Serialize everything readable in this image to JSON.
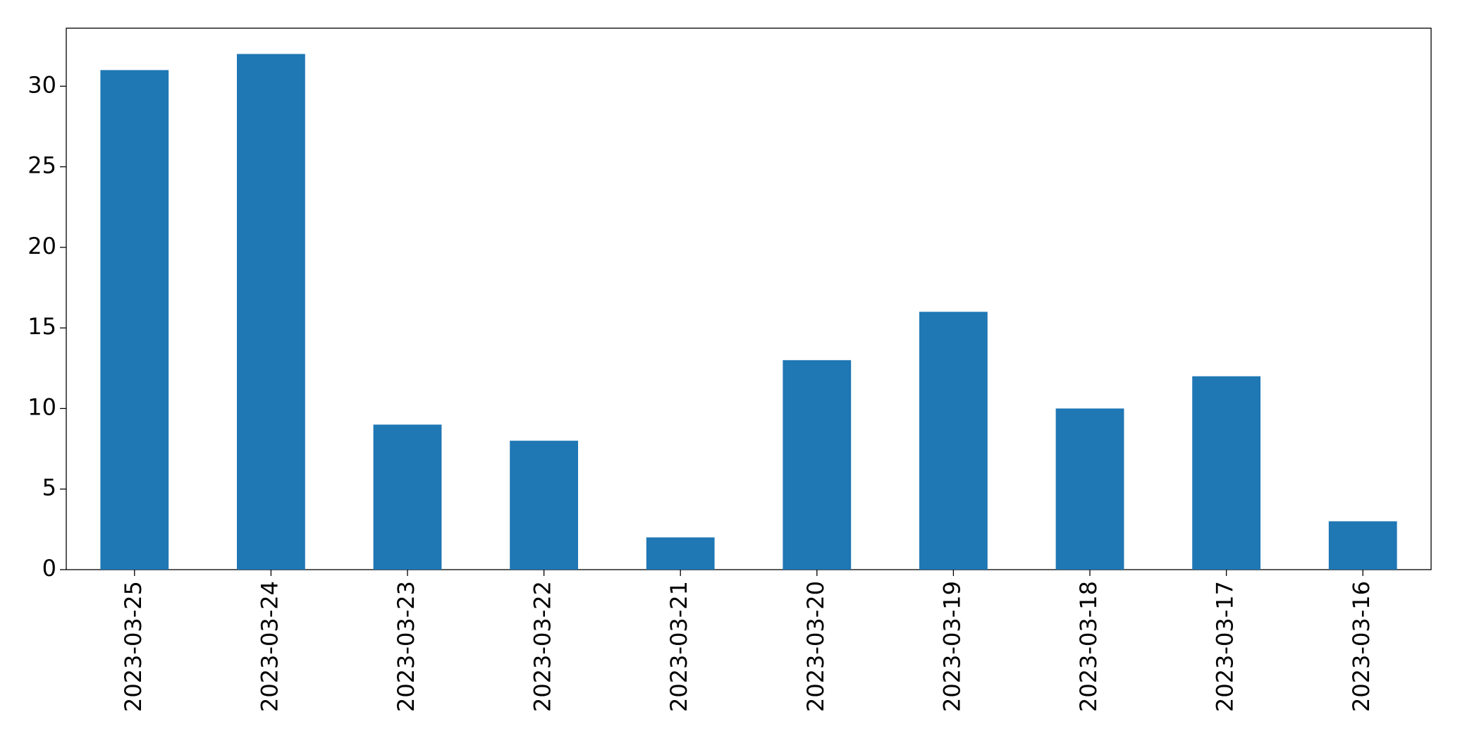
{
  "chart_data": {
    "type": "bar",
    "categories": [
      "2023-03-25",
      "2023-03-24",
      "2023-03-23",
      "2023-03-22",
      "2023-03-21",
      "2023-03-20",
      "2023-03-19",
      "2023-03-18",
      "2023-03-17",
      "2023-03-16"
    ],
    "values": [
      31,
      32,
      9,
      8,
      2,
      13,
      16,
      10,
      12,
      3
    ],
    "color": "#1f77b4",
    "ylim": [
      0,
      33.6
    ],
    "yticks": [
      0,
      5,
      10,
      15,
      20,
      25,
      30
    ],
    "grid": false
  }
}
